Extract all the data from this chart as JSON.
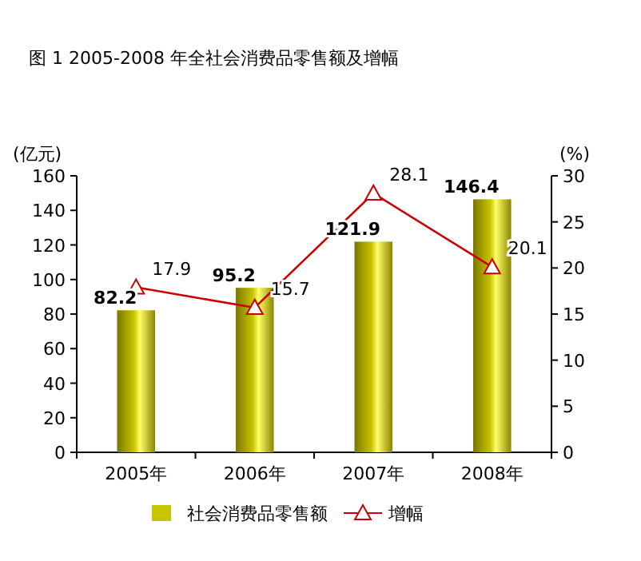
{
  "chart_data": {
    "type": "bar",
    "title": "图 1  2005-2008 年全社会消费品零售额及增幅",
    "ylabel": "(亿元)",
    "y2label": "(%)",
    "categories": [
      "2005年",
      "2006年",
      "2007年",
      "2008年"
    ],
    "series": [
      {
        "name": "社会消费品零售额",
        "color": "#c8c400",
        "values": [
          82.2,
          95.2,
          121.9,
          146.4
        ]
      },
      {
        "name": "增幅",
        "type": "line",
        "axis": "y2",
        "color": "#cc0000",
        "marker": "triangle",
        "values": [
          17.9,
          15.7,
          28.1,
          20.1
        ]
      }
    ],
    "ylim": [
      0,
      160
    ],
    "yticks": [
      0,
      20,
      40,
      60,
      80,
      100,
      120,
      140,
      160
    ],
    "y2lim": [
      0,
      30
    ],
    "y2ticks": [
      0,
      5,
      10,
      15,
      20,
      25,
      30
    ],
    "data_labels": true,
    "legend": "bottom",
    "grid": false
  }
}
